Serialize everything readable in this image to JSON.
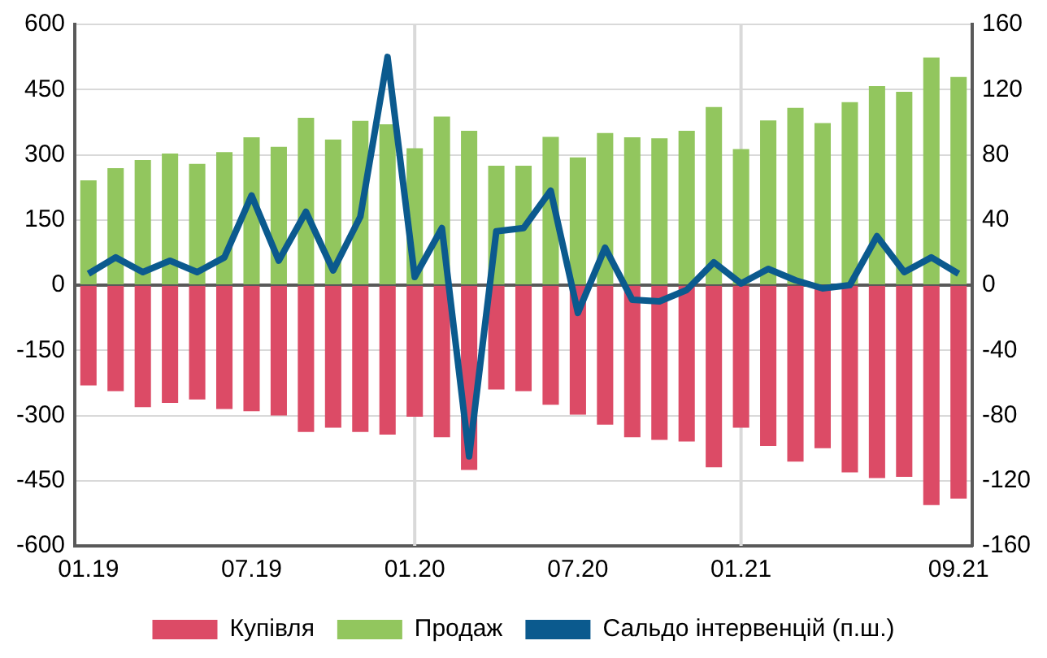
{
  "chart_data": {
    "type": "bar",
    "stacked": true,
    "categories": [
      "01.19",
      null,
      null,
      null,
      null,
      null,
      "07.19",
      null,
      null,
      null,
      null,
      null,
      "01.20",
      null,
      null,
      null,
      null,
      null,
      "07.20",
      null,
      null,
      null,
      null,
      null,
      "01.21",
      null,
      null,
      null,
      null,
      null,
      null,
      null,
      "09.21"
    ],
    "series": [
      {
        "name": "Купівля",
        "color": "#dc4b66",
        "values": [
          -231,
          -244,
          -281,
          -271,
          -263,
          -285,
          -290,
          -300,
          -338,
          -328,
          -338,
          -344,
          -303,
          -350,
          -425,
          -240,
          -244,
          -275,
          -298,
          -321,
          -350,
          -356,
          -360,
          -419,
          -328,
          -370,
          -406,
          -375,
          -431,
          -444,
          -441,
          -506,
          -491
        ]
      },
      {
        "name": "Продаж",
        "color": "#92c65e",
        "values": [
          241,
          269,
          288,
          303,
          279,
          306,
          340,
          318,
          385,
          335,
          378,
          370,
          315,
          388,
          355,
          275,
          275,
          341,
          294,
          350,
          340,
          338,
          355,
          410,
          313,
          379,
          408,
          373,
          421,
          458,
          445,
          524,
          479
        ]
      },
      {
        "name": "Сальдо інтервенцій (п.ш.)",
        "type": "line",
        "axis": "y2",
        "color": "#0b5a8e",
        "values": [
          7,
          17,
          8,
          15,
          8,
          17,
          55,
          15,
          45,
          9,
          42,
          140,
          5,
          35,
          -105,
          33,
          35,
          58,
          -17,
          23,
          -9,
          -10,
          -3,
          14,
          1,
          10,
          3,
          -2,
          0,
          30,
          8,
          17,
          7
        ]
      }
    ],
    "ylim": [
      -600,
      600
    ],
    "yticks": [
      -600,
      -450,
      -300,
      -150,
      0,
      150,
      300,
      450,
      600
    ],
    "y2lim": [
      -160,
      160
    ],
    "y2ticks": [
      -160,
      -120,
      -80,
      -40,
      0,
      40,
      80,
      120,
      160
    ],
    "ref_lines": [
      {
        "axis": "x",
        "value": "01.20",
        "color": "#d9d9d9"
      },
      {
        "axis": "x",
        "value": "01.21",
        "color": "#d9d9d9"
      }
    ],
    "grid": "y",
    "legend": "bottom",
    "marker": "none",
    "line_style": "solid"
  }
}
